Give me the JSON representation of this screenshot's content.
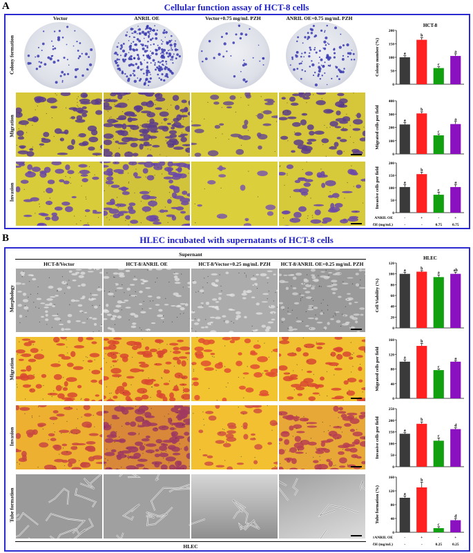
{
  "panelA": {
    "letter": "A",
    "title": "Cellular function assay of HCT-8 cells",
    "columns": [
      "Vector",
      "ANRIL OE",
      "Vector+0.75 mg/mL PZH",
      "ANRIL OE+0.75 mg/mL PZH"
    ],
    "rows": [
      "Colony formation",
      "Migration",
      "Invasion"
    ]
  },
  "panelB": {
    "letter": "B",
    "title": "HLEC incubated with supernatants of HCT-8 cells",
    "supernatant_label": "Supernant",
    "columns": [
      "HCT-8/Vector",
      "HCT-8/ANRIL OE",
      "HCT-8/Vector+0.25 mg/mL PZH",
      "HCT-8/ANRIL OE+0.25 mg/mL PZH"
    ],
    "rows": [
      "Morphology",
      "Migration",
      "Invasion",
      "Tube formation"
    ],
    "bottom_label": "HLEC"
  },
  "chart_data": [
    {
      "type": "bar",
      "title": "HCT-8",
      "ylabel": "Colony number (%)",
      "categories": [
        "Vector",
        "ANRIL OE",
        "Vector+PZH",
        "ANRIL OE+PZH"
      ],
      "values": [
        100,
        165,
        60,
        105
      ],
      "errors": [
        6,
        8,
        5,
        8
      ],
      "letters": [
        "a",
        "b",
        "c",
        "a"
      ],
      "colors": [
        "#3a3a3a",
        "#ff2020",
        "#10a010",
        "#8a10c0"
      ],
      "ylim": [
        0,
        200
      ],
      "yticks": [
        "0",
        "50",
        "100",
        "150",
        "200"
      ]
    },
    {
      "type": "bar",
      "title": "",
      "ylabel": "Migrated cells per field",
      "categories": [
        "Vector",
        "ANRIL OE",
        "Vector+PZH",
        "ANRIL OE+PZH"
      ],
      "values": [
        222,
        305,
        140,
        225
      ],
      "errors": [
        15,
        12,
        10,
        20
      ],
      "letters": [
        "a",
        "b",
        "c",
        "a"
      ],
      "colors": [
        "#3a3a3a",
        "#ff2020",
        "#10a010",
        "#8a10c0"
      ],
      "ylim": [
        0,
        400
      ],
      "yticks": [
        "0",
        "100",
        "200",
        "300",
        "400"
      ]
    },
    {
      "type": "bar",
      "title": "",
      "ylabel": "Invasive cells per field",
      "categories": [
        "Vector",
        "ANRIL OE",
        "Vector+PZH",
        "ANRIL OE+PZH"
      ],
      "values": [
        103,
        155,
        72,
        103
      ],
      "errors": [
        10,
        8,
        10,
        10
      ],
      "letters": [
        "a",
        "b",
        "c",
        "a"
      ],
      "colors": [
        "#3a3a3a",
        "#ff2020",
        "#10a010",
        "#8a10c0"
      ],
      "ylim": [
        0,
        200
      ],
      "yticks": [
        "0",
        "50",
        "100",
        "150",
        "200"
      ],
      "condition_rows": [
        {
          "label": "ANRIL OE",
          "values": [
            "-",
            "+",
            "-",
            "+"
          ]
        },
        {
          "label": "PZH (mg/mL)",
          "values": [
            "-",
            "-",
            "0.75",
            "0.75"
          ]
        }
      ]
    },
    {
      "type": "bar",
      "title": "HLEC",
      "ylabel": "Cell Viability (%)",
      "categories": [
        "HCT-8/Vector",
        "HCT-8/ANRIL OE",
        "HCT-8/Vector+PZH",
        "HCT-8/ANRIL OE+PZH"
      ],
      "values": [
        100,
        104,
        94,
        100
      ],
      "errors": [
        3,
        2,
        4,
        3
      ],
      "letters": [
        "a",
        "b",
        "a",
        "ab"
      ],
      "colors": [
        "#3a3a3a",
        "#ff2020",
        "#10a010",
        "#8a10c0"
      ],
      "ylim": [
        0,
        120
      ],
      "yticks": [
        "0",
        "20",
        "40",
        "60",
        "80",
        "100",
        "120"
      ]
    },
    {
      "type": "bar",
      "title": "",
      "ylabel": "Migrated cells per field",
      "categories": [
        "HCT-8/Vector",
        "HCT-8/ANRIL OE",
        "HCT-8/Vector+PZH",
        "HCT-8/ANRIL OE+PZH"
      ],
      "values": [
        100,
        143,
        77,
        100
      ],
      "errors": [
        5,
        7,
        3,
        3
      ],
      "letters": [
        "a",
        "b",
        "c",
        "a"
      ],
      "colors": [
        "#3a3a3a",
        "#ff2020",
        "#10a010",
        "#8a10c0"
      ],
      "ylim": [
        0,
        160
      ],
      "yticks": [
        "0",
        "40",
        "80",
        "120",
        "160"
      ]
    },
    {
      "type": "bar",
      "title": "",
      "ylabel": "Invasive cells per field",
      "categories": [
        "HCT-8/Vector",
        "HCT-8/ANRIL OE",
        "HCT-8/Vector+PZH",
        "HCT-8/ANRIL OE+PZH"
      ],
      "values": [
        142,
        185,
        112,
        162
      ],
      "errors": [
        5,
        8,
        12,
        6
      ],
      "letters": [
        "a",
        "b",
        "c",
        "d"
      ],
      "colors": [
        "#3a3a3a",
        "#ff2020",
        "#10a010",
        "#8a10c0"
      ],
      "ylim": [
        0,
        250
      ],
      "yticks": [
        "0",
        "50",
        "100",
        "150",
        "200",
        "250"
      ]
    },
    {
      "type": "bar",
      "title": "",
      "ylabel": "Tube formation (%)",
      "categories": [
        "HCT-8/Vector",
        "HCT-8/ANRIL OE",
        "HCT-8/Vector+PZH",
        "HCT-8/ANRIL OE+PZH"
      ],
      "values": [
        100,
        130,
        12,
        35
      ],
      "errors": [
        5,
        15,
        4,
        5
      ],
      "letters": [
        "a",
        "b",
        "c",
        "d"
      ],
      "colors": [
        "#3a3a3a",
        "#ff2020",
        "#10a010",
        "#8a10c0"
      ],
      "ylim": [
        0,
        160
      ],
      "yticks": [
        "0",
        "40",
        "80",
        "120",
        "160"
      ],
      "condition_rows": [
        {
          "label": "HCT-8/ANRIL OE",
          "values": [
            "-",
            "+",
            "-",
            "+"
          ]
        },
        {
          "label": "PZH (mg/mL)",
          "values": [
            "-",
            "-",
            "0.25",
            "0.25"
          ]
        }
      ]
    }
  ]
}
